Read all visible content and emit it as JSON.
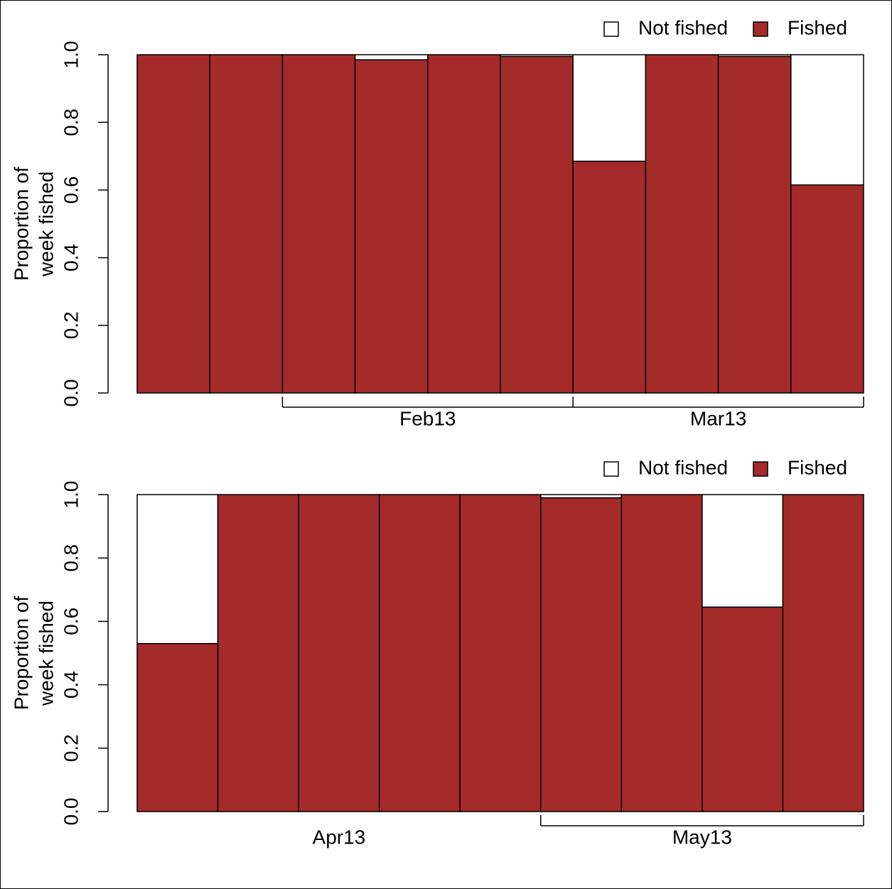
{
  "chart_data": [
    {
      "type": "stacked-bar",
      "ylabel": [
        "Proportion of",
        "week fished"
      ],
      "categories": [
        null,
        null,
        null,
        null,
        null,
        null,
        null,
        null,
        null,
        null
      ],
      "series": [
        {
          "name": "Not fished",
          "color": "#ffffff",
          "values": [
            0,
            0,
            0,
            0.015,
            0,
            0.005,
            0.315,
            0,
            0.005,
            0.385
          ]
        },
        {
          "name": "Fished",
          "color": "#a52a2a",
          "values": [
            1,
            1,
            1,
            0.985,
            1,
            0.995,
            0.685,
            1,
            0.995,
            0.615
          ]
        }
      ],
      "ylim": [
        0,
        1
      ],
      "yticks": [
        {
          "value": 0,
          "label": "0.0"
        },
        0.2,
        0.4,
        0.6,
        0.8,
        {
          "value": 1,
          "label": "1.0"
        }
      ],
      "xlim": [
        0,
        10
      ],
      "xticks": [
        2,
        6,
        10
      ],
      "xtick_labels": [
        {
          "value": 4,
          "label": "Feb13"
        },
        {
          "value": 8,
          "label": "Mar13"
        }
      ],
      "legend": "top-right"
    },
    {
      "type": "stacked-bar",
      "ylabel": [
        "Proportion of",
        "week fished"
      ],
      "categories": [
        null,
        null,
        null,
        null,
        null,
        null,
        null,
        null,
        null
      ],
      "series": [
        {
          "name": "Not fished",
          "color": "#ffffff",
          "values": [
            0.47,
            0,
            0,
            0,
            0,
            0.01,
            0,
            0.355,
            0
          ]
        },
        {
          "name": "Fished",
          "color": "#a52a2a",
          "values": [
            0.53,
            1,
            1,
            1,
            1,
            0.99,
            1,
            0.645,
            1
          ]
        }
      ],
      "ylim": [
        0,
        1
      ],
      "yticks": [
        {
          "value": 0,
          "label": "0.0"
        },
        0.2,
        0.4,
        0.6,
        0.8,
        {
          "value": 1,
          "label": "1.0"
        }
      ],
      "xlim": [
        0,
        9
      ],
      "xticks": [
        5,
        9
      ],
      "xtick_labels": [
        {
          "value": 2.5,
          "label": "Apr13"
        },
        {
          "value": 7,
          "label": "May13"
        }
      ],
      "legend": "top-right"
    }
  ]
}
